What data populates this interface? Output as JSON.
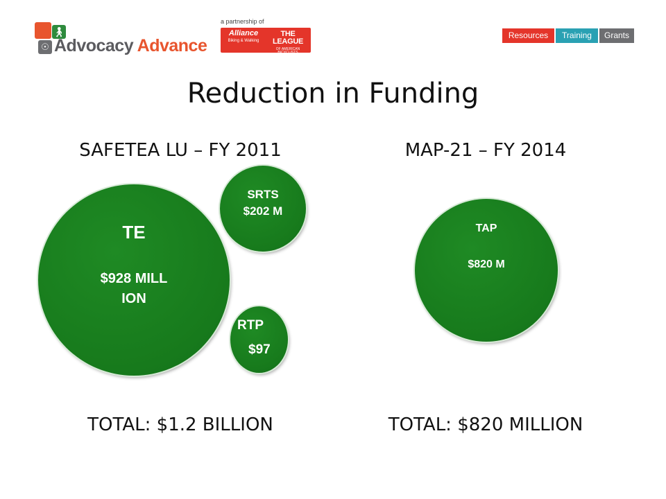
{
  "header": {
    "logo_prefix": "Advocacy ",
    "logo_accent": "Advance",
    "partnership_caption": "a partnership of",
    "partner1_name": "Alliance",
    "partner1_sub": "Biking & Walking",
    "partner2_name": "THE LEAGUE",
    "partner2_sub": "OF AMERICAN BICYCLISTS",
    "nav": [
      "Resources",
      "Training",
      "Grants"
    ],
    "colors": {
      "orange": "#e8552e",
      "red": "#e4352a",
      "teal": "#2aa1b3",
      "grey": "#6d6e71",
      "bubble_green": "#177a1c"
    }
  },
  "slide": {
    "title": "Reduction in Funding",
    "left": {
      "heading": "SAFETEA LU – FY 2011",
      "total": "TOTAL: $1.2 BILLION",
      "bubbles": {
        "te": {
          "label": "TE",
          "value": "$928 MILLION"
        },
        "srts": {
          "label": "SRTS",
          "value": "$202 M"
        },
        "rtp": {
          "label": "RTP",
          "value": "$97"
        }
      }
    },
    "right": {
      "heading": "MAP-21 – FY 2014",
      "total": "TOTAL: $820 MILLION",
      "bubbles": {
        "tap": {
          "label": "TAP",
          "value": "$820 M"
        }
      }
    }
  }
}
